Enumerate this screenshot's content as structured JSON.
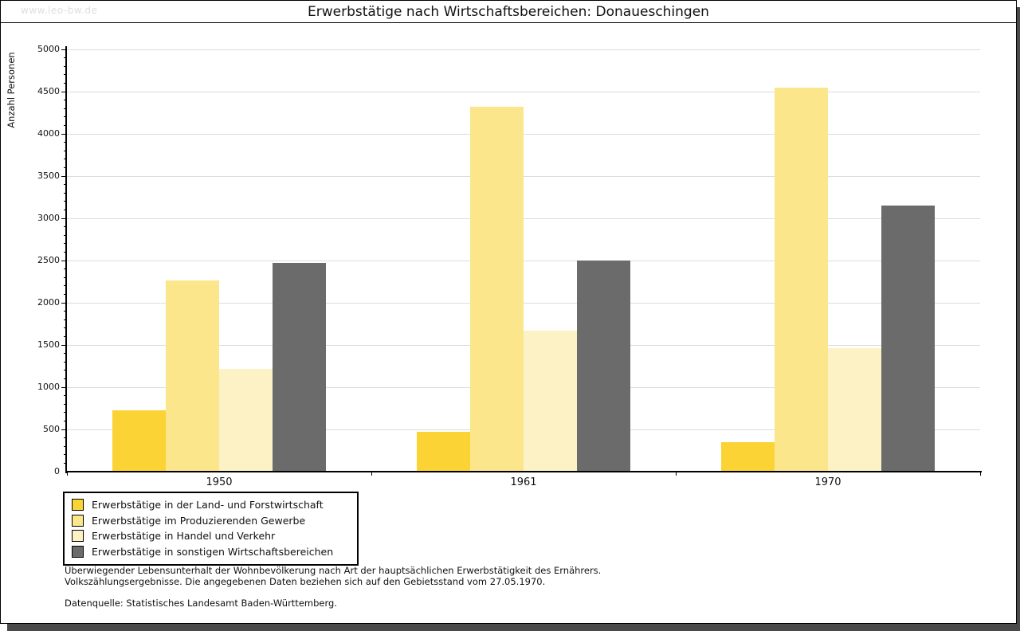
{
  "page": {
    "watermark": "www.leo-bw.de",
    "title": "Erwerbstätige nach Wirtschaftsbereichen: Donaueschingen"
  },
  "chart_data": {
    "type": "bar",
    "title": "Erwerbstätige nach Wirtschaftsbereichen: Donaueschingen",
    "xlabel": "",
    "ylabel": "Anzahl Personen",
    "ylim": [
      0,
      5000
    ],
    "ytick_major": 500,
    "ytick_minor": 100,
    "grid": true,
    "legend_position": "bottom-left",
    "categories": [
      "1950",
      "1961",
      "1970"
    ],
    "series": [
      {
        "name": "Erwerbstätige in der Land- und Forstwirtschaft",
        "color": "#FBD335",
        "values": [
          730,
          470,
          350
        ]
      },
      {
        "name": "Erwerbstätige im Produzierenden Gewerbe",
        "color": "#FBE68C",
        "values": [
          2260,
          4320,
          4545
        ]
      },
      {
        "name": "Erwerbstätige in Handel und Verkehr",
        "color": "#FCF2C5",
        "values": [
          1215,
          1670,
          1465
        ]
      },
      {
        "name": "Erwerbstätige in sonstigen Wirtschaftsbereichen",
        "color": "#6B6B6B",
        "values": [
          2470,
          2500,
          3150
        ]
      }
    ]
  },
  "footnotes": {
    "line1": "Überwiegender Lebensunterhalt der Wohnbevölkerung nach Art der hauptsächlichen Erwerbstätigkeit des Ernährers.",
    "line2": "Volkszählungsergebnisse. Die angegebenen Daten beziehen sich auf den Gebietsstand vom 27.05.1970.",
    "source": "Datenquelle: Statistisches Landesamt Baden-Württemberg."
  },
  "colors": {
    "shadow": "#4B4B4B",
    "gridline": "#DCDCDC",
    "axis": "#000000",
    "watermark": "#DEDEDE"
  }
}
